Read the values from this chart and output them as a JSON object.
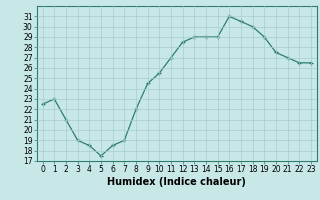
{
  "x": [
    0,
    1,
    2,
    3,
    4,
    5,
    6,
    7,
    8,
    9,
    10,
    11,
    12,
    13,
    14,
    15,
    16,
    17,
    18,
    19,
    20,
    21,
    22,
    23
  ],
  "y": [
    22.5,
    23.0,
    21.0,
    19.0,
    18.5,
    17.5,
    18.5,
    19.0,
    22.0,
    24.5,
    25.5,
    27.0,
    28.5,
    29.0,
    29.0,
    29.0,
    31.0,
    30.5,
    30.0,
    29.0,
    27.5,
    27.0,
    26.5,
    26.5
  ],
  "line_color": "#2e7d6e",
  "marker": "+",
  "marker_color": "#2e7d6e",
  "bg_color": "#c8e8e8",
  "grid_color": "#a8cece",
  "xlabel": "Humidex (Indice chaleur)",
  "ylim": [
    17,
    32
  ],
  "xlim": [
    -0.5,
    23.5
  ],
  "yticks": [
    17,
    18,
    19,
    20,
    21,
    22,
    23,
    24,
    25,
    26,
    27,
    28,
    29,
    30,
    31
  ],
  "xticks": [
    0,
    1,
    2,
    3,
    4,
    5,
    6,
    7,
    8,
    9,
    10,
    11,
    12,
    13,
    14,
    15,
    16,
    17,
    18,
    19,
    20,
    21,
    22,
    23
  ],
  "tick_fontsize": 5.5,
  "label_fontsize": 7
}
